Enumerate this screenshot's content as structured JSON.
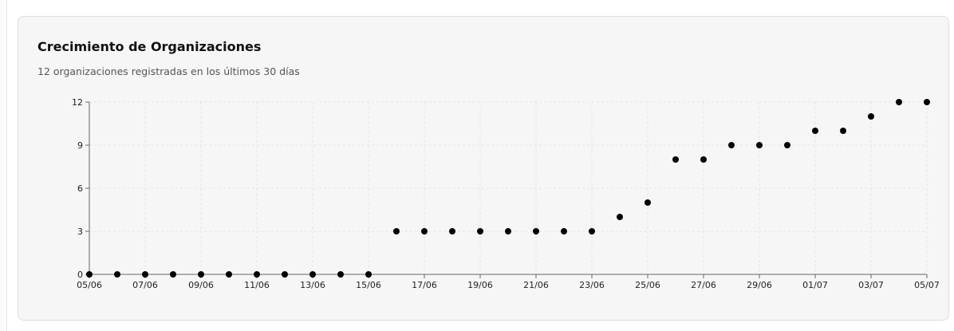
{
  "card": {
    "title": "Crecimiento de Organizaciones",
    "subtitle": "12 organizaciones registradas en los últimos 30 días"
  },
  "chart_data": {
    "type": "scatter",
    "title": "Crecimiento de Organizaciones",
    "subtitle": "12 organizaciones registradas en los últimos 30 días",
    "x": [
      "05/06",
      "06/06",
      "07/06",
      "08/06",
      "09/06",
      "10/06",
      "11/06",
      "12/06",
      "13/06",
      "14/06",
      "15/06",
      "16/06",
      "17/06",
      "18/06",
      "19/06",
      "20/06",
      "21/06",
      "22/06",
      "23/06",
      "24/06",
      "25/06",
      "26/06",
      "27/06",
      "28/06",
      "29/06",
      "30/06",
      "01/07",
      "02/07",
      "03/07",
      "04/07",
      "05/07"
    ],
    "values": [
      0,
      0,
      0,
      0,
      0,
      0,
      0,
      0,
      0,
      0,
      0,
      3,
      3,
      3,
      3,
      3,
      3,
      3,
      3,
      4,
      5,
      8,
      8,
      9,
      9,
      9,
      10,
      10,
      11,
      12,
      12
    ],
    "x_tick_labels": [
      "05/06",
      "07/06",
      "09/06",
      "11/06",
      "13/06",
      "15/06",
      "17/06",
      "19/06",
      "21/06",
      "23/06",
      "25/06",
      "27/06",
      "29/06",
      "01/07",
      "03/07",
      "05/07"
    ],
    "y_ticks": [
      0,
      3,
      6,
      9,
      12
    ],
    "ylim": [
      0,
      12
    ],
    "xlabel": "",
    "ylabel": "",
    "grid": true,
    "legend": "none",
    "colors": {
      "point": "#000000",
      "grid": "#e4e4e4",
      "axis": "#666666"
    }
  }
}
